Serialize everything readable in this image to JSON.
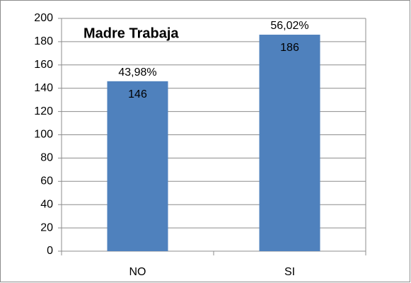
{
  "chart_data": {
    "type": "bar",
    "title": "Madre Trabaja",
    "categories": [
      "NO",
      "SI"
    ],
    "values": [
      146,
      186
    ],
    "percent_labels": [
      "43,98%",
      "56,02%"
    ],
    "color": "#4f81bd",
    "ylim": [
      0,
      200
    ],
    "yticks": [
      0,
      20,
      40,
      60,
      80,
      100,
      120,
      140,
      160,
      180,
      200
    ],
    "grid": true
  }
}
